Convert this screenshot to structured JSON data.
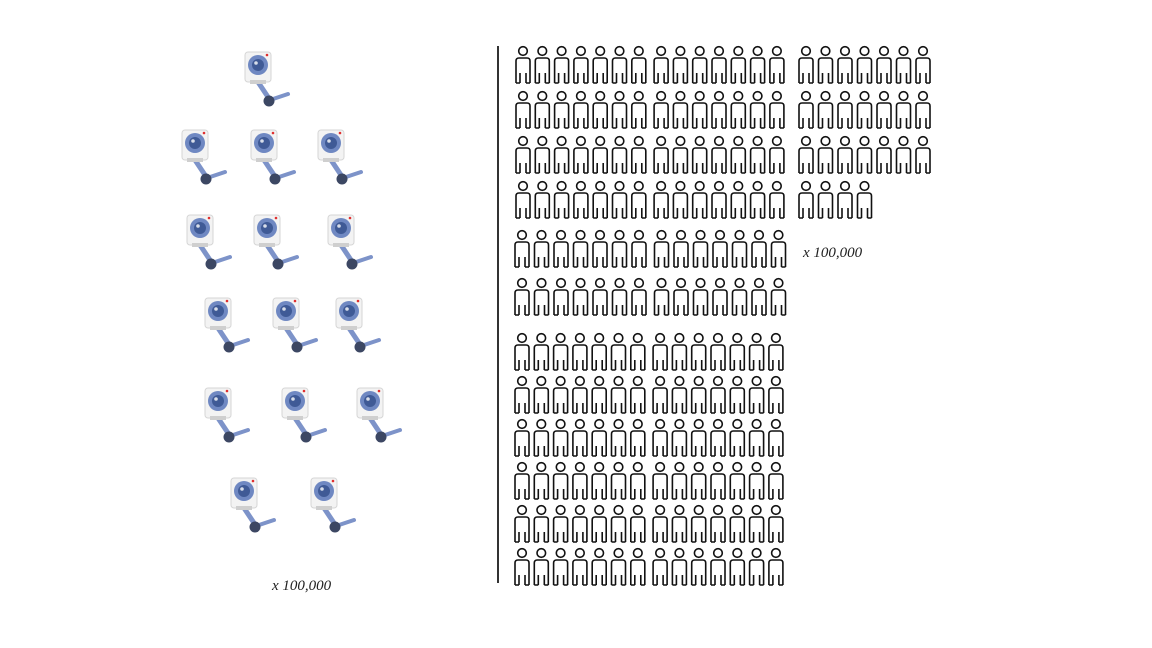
{
  "cameras": {
    "icon": "security-camera-icon",
    "multiplier_label": "x 100,000",
    "colors": {
      "body": "#f3f3f3",
      "lens_ring": "#6f88c2",
      "lens": "#3f5a96",
      "arm": "#7d93c9",
      "joint": "#3c4763",
      "led": "#e03030"
    },
    "rows": [
      1,
      3,
      3,
      3,
      3,
      2
    ]
  },
  "people": {
    "icon": "person-outline-icon",
    "multiplier_label": "x 100,000",
    "color": "#111111",
    "blocks": [
      {
        "rows": [
          14,
          14,
          14,
          14
        ]
      },
      {
        "rows": [
          7,
          7,
          7,
          4
        ]
      },
      {
        "rows": [
          14,
          14
        ]
      },
      {
        "rows": [
          14,
          14,
          14,
          14,
          14,
          14
        ]
      }
    ]
  }
}
